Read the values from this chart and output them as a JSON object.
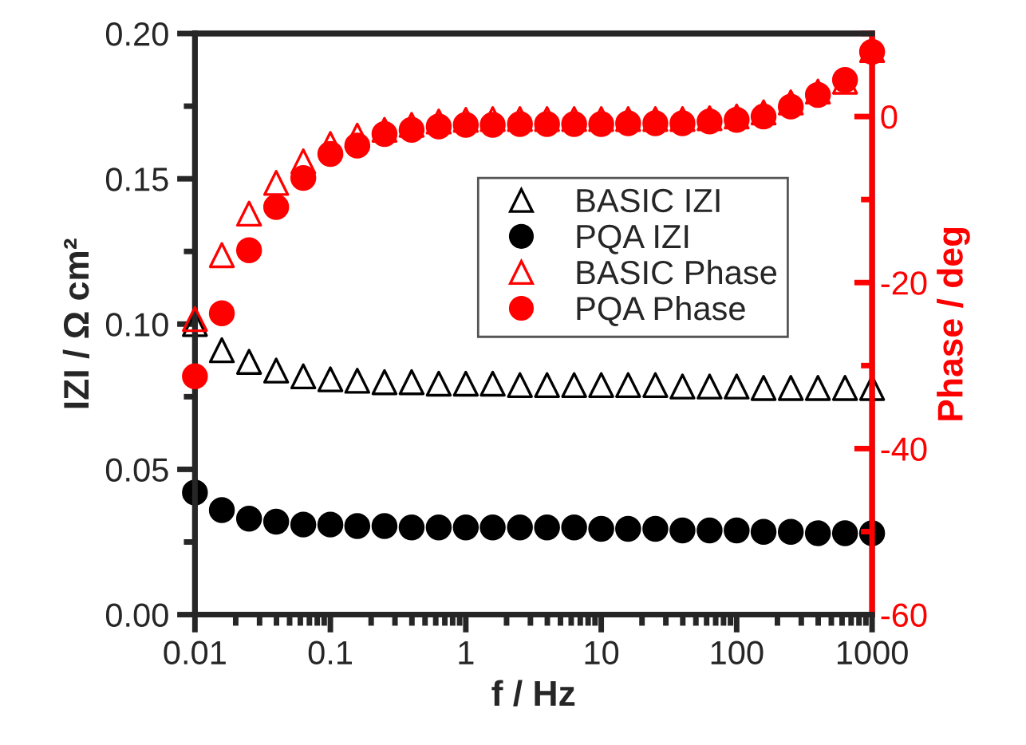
{
  "chart_data": {
    "type": "scatter",
    "xlabel": "f / Hz",
    "ylabel": "IZI / Ω cm²",
    "y2label": "Phase / deg",
    "x": [
      0.01,
      0.0158,
      0.0251,
      0.0398,
      0.0631,
      0.1,
      0.158,
      0.251,
      0.398,
      0.631,
      1,
      1.58,
      2.51,
      3.98,
      6.31,
      10,
      15.8,
      25.1,
      39.8,
      63.1,
      100,
      158,
      251,
      398,
      631,
      1000
    ],
    "series": [
      {
        "name": "BASIC IZI",
        "color": "#000000",
        "marker": "triangle",
        "values": [
          0.1,
          0.091,
          0.087,
          0.084,
          0.082,
          0.081,
          0.0805,
          0.08,
          0.08,
          0.0795,
          0.0795,
          0.0795,
          0.079,
          0.079,
          0.079,
          0.079,
          0.079,
          0.079,
          0.0785,
          0.0785,
          0.0785,
          0.078,
          0.078,
          0.078,
          0.078,
          0.078
        ]
      },
      {
        "name": "PQA IZI",
        "color": "#000000",
        "marker": "circle",
        "values": [
          0.042,
          0.036,
          0.033,
          0.032,
          0.031,
          0.031,
          0.0305,
          0.0305,
          0.03,
          0.03,
          0.03,
          0.03,
          0.03,
          0.03,
          0.03,
          0.0295,
          0.0295,
          0.0295,
          0.029,
          0.029,
          0.029,
          0.0285,
          0.0285,
          0.028,
          0.028,
          0.028
        ]
      },
      {
        "name": "BASIC Phase",
        "color": "#ff0000",
        "marker": "triangle",
        "axis": "y2",
        "values": [
          -24.4,
          -16.7,
          -11.7,
          -8,
          -5.4,
          -3.3,
          -2.3,
          -1.6,
          -1.0,
          -0.6,
          -0.4,
          -0.3,
          -0.3,
          -0.3,
          -0.3,
          -0.3,
          -0.3,
          -0.3,
          -0.3,
          -0.2,
          0,
          0.5,
          1.7,
          3.0,
          4.2,
          8.0
        ]
      },
      {
        "name": "PQA Phase",
        "color": "#ff0000",
        "marker": "circle",
        "axis": "y2",
        "values": [
          -31.3,
          -23.7,
          -16.1,
          -10.9,
          -7.4,
          -4.5,
          -3.5,
          -2.1,
          -1.6,
          -1.2,
          -1.0,
          -1.0,
          -0.9,
          -0.9,
          -0.9,
          -0.9,
          -0.8,
          -0.8,
          -0.8,
          -0.6,
          -0.4,
          0,
          1.2,
          2.6,
          4.4,
          7.8
        ]
      }
    ],
    "xlim": [
      0.01,
      1000
    ],
    "xticks": [
      0.01,
      0.1,
      1,
      10,
      100,
      1000
    ],
    "log": "x",
    "ylim": [
      0,
      0.2
    ],
    "yticks": [
      {
        "value": 0,
        "label": "0.00"
      },
      {
        "value": 0.05,
        "label": "0.05"
      },
      {
        "value": 0.1,
        "label": "0.10"
      },
      {
        "value": 0.15,
        "label": "0.15"
      },
      {
        "value": 0.2,
        "label": "0.20"
      }
    ],
    "y2lim": [
      -60,
      10
    ],
    "y2ticks": [
      -60,
      -40,
      -20,
      0
    ],
    "grid": false,
    "legend": "top right"
  }
}
